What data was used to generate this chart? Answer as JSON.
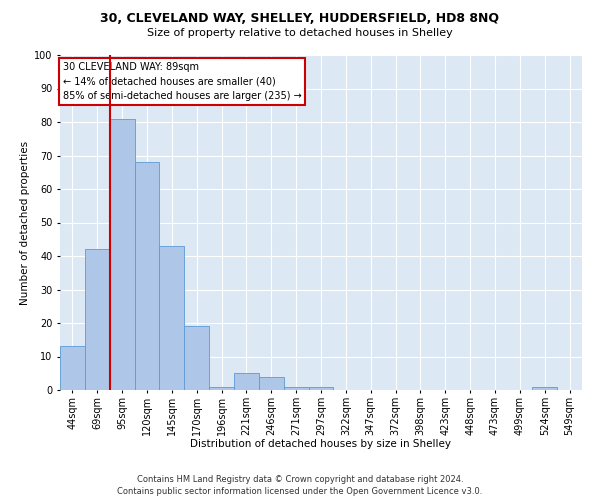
{
  "title1": "30, CLEVELAND WAY, SHELLEY, HUDDERSFIELD, HD8 8NQ",
  "title2": "Size of property relative to detached houses in Shelley",
  "xlabel": "Distribution of detached houses by size in Shelley",
  "ylabel": "Number of detached properties",
  "footer1": "Contains HM Land Registry data © Crown copyright and database right 2024.",
  "footer2": "Contains public sector information licensed under the Open Government Licence v3.0.",
  "annotation_title": "30 CLEVELAND WAY: 89sqm",
  "annotation_line2": "← 14% of detached houses are smaller (40)",
  "annotation_line3": "85% of semi-detached houses are larger (235) →",
  "bar_color": "#aec6e8",
  "bar_edge_color": "#5b9bd5",
  "background_color": "#dde8f5",
  "vline_color": "#cc0000",
  "vline_x_index": 2,
  "bins": [
    "44sqm",
    "69sqm",
    "95sqm",
    "120sqm",
    "145sqm",
    "170sqm",
    "196sqm",
    "221sqm",
    "246sqm",
    "271sqm",
    "297sqm",
    "322sqm",
    "347sqm",
    "372sqm",
    "398sqm",
    "423sqm",
    "448sqm",
    "473sqm",
    "499sqm",
    "524sqm",
    "549sqm"
  ],
  "values": [
    13,
    42,
    81,
    68,
    43,
    19,
    1,
    5,
    4,
    1,
    1,
    0,
    0,
    0,
    0,
    0,
    0,
    0,
    0,
    1,
    0
  ],
  "ylim": [
    0,
    100
  ],
  "yticks": [
    0,
    10,
    20,
    30,
    40,
    50,
    60,
    70,
    80,
    90,
    100
  ],
  "grid_color": "#ffffff",
  "title1_fontsize": 9,
  "title2_fontsize": 8,
  "xlabel_fontsize": 7.5,
  "ylabel_fontsize": 7.5,
  "tick_fontsize": 7,
  "annotation_fontsize": 7,
  "footer_fontsize": 6
}
